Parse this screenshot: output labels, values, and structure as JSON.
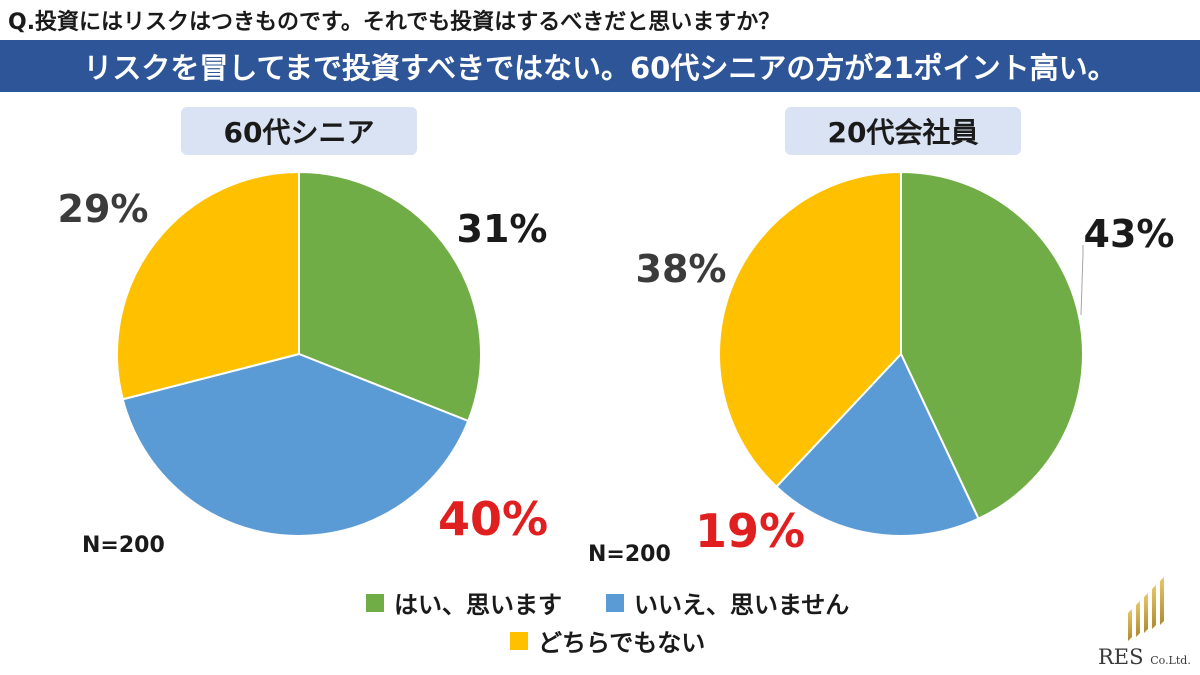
{
  "question": "Q.投資にはリスクはつきものです。それでも投資はするべきだと思いますか？",
  "banner": "リスクを冒してまで投資すべきではない。60代シニアの方が21ポイント高い。",
  "colors": {
    "yes": "#70ad47",
    "no": "#5b9bd5",
    "neither": "#ffc000",
    "banner": "#2e5597",
    "pill": "#dae3f3",
    "highlight": "#e02020",
    "label": "#3b3b3b"
  },
  "legend": [
    {
      "label": "はい、思います",
      "color": "#70ad47"
    },
    {
      "label": "いいえ、思いません",
      "color": "#5b9bd5"
    },
    {
      "label": "どちらでもない",
      "color": "#ffc000"
    }
  ],
  "chart_data": [
    {
      "type": "pie",
      "title": "60代シニア",
      "n_label": "N=200",
      "categories": [
        "はい、思います",
        "いいえ、思いません",
        "どちらでもない"
      ],
      "values": [
        31,
        40,
        29
      ],
      "labels": [
        "31%",
        "40%",
        "29%"
      ]
    },
    {
      "type": "pie",
      "title": "20代会社員",
      "n_label": "N=200",
      "categories": [
        "はい、思います",
        "いいえ、思いません",
        "どちらでもない"
      ],
      "values": [
        43,
        19,
        38
      ],
      "labels": [
        "43%",
        "19%",
        "38%"
      ]
    }
  ],
  "logo": {
    "name": "RES",
    "suffix": "Co.Ltd."
  }
}
